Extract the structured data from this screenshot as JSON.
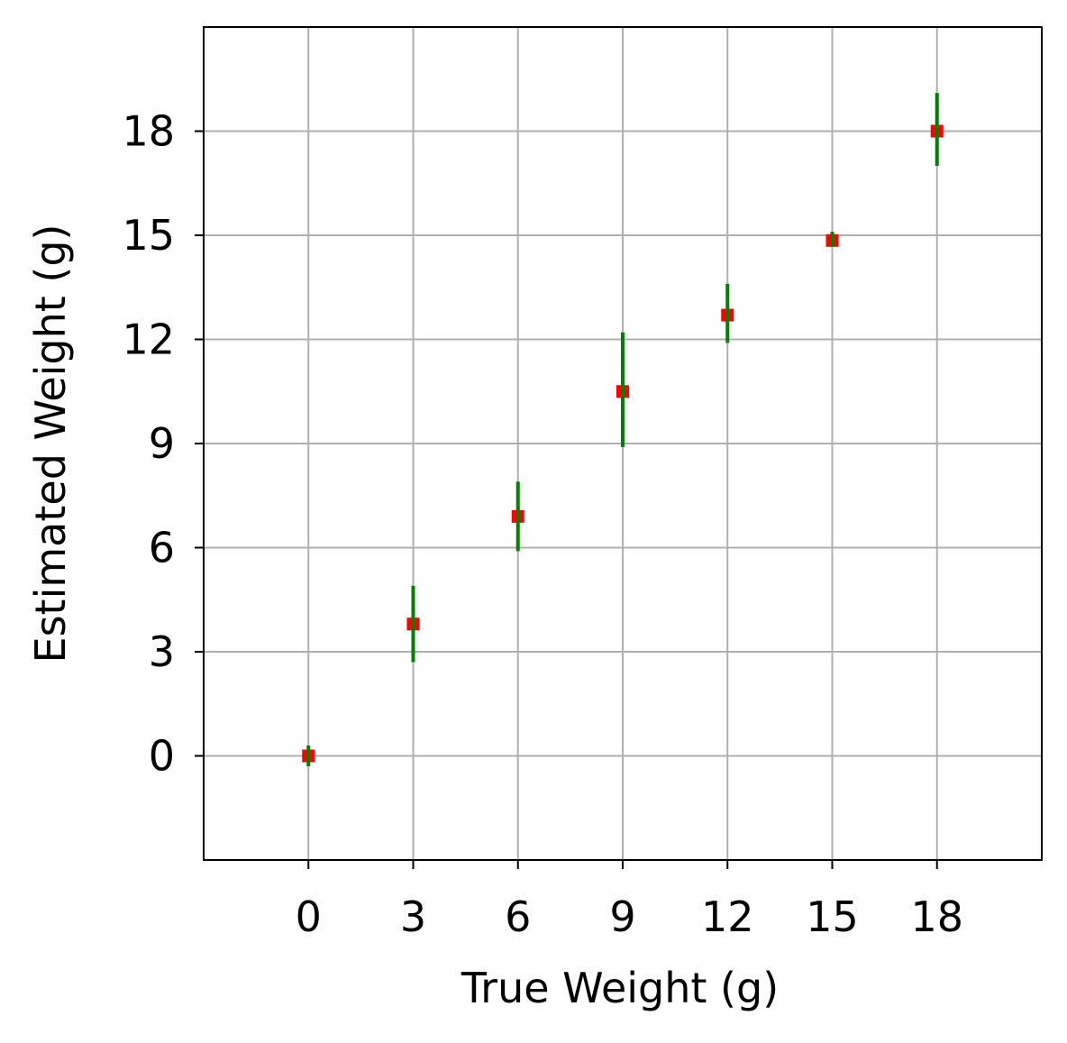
{
  "chart_data": {
    "type": "scatter",
    "xlabel": "True Weight (g)",
    "ylabel": "Estimated Weight (g)",
    "xlim": [
      -3,
      21
    ],
    "ylim": [
      -3,
      21
    ],
    "xticks": [
      0,
      3,
      6,
      9,
      12,
      15,
      18
    ],
    "yticks": [
      0,
      3,
      6,
      9,
      12,
      15,
      18
    ],
    "grid": true,
    "marker_color": "#ff0000",
    "errorbar_color": "#008000",
    "grid_color": "#b0b0b0",
    "points": [
      {
        "x": 0,
        "y": 0.0,
        "yerr_low": -0.3,
        "yerr_high": 0.3
      },
      {
        "x": 3,
        "y": 3.8,
        "yerr_low": 2.7,
        "yerr_high": 4.9
      },
      {
        "x": 6,
        "y": 6.9,
        "yerr_low": 5.9,
        "yerr_high": 7.9
      },
      {
        "x": 9,
        "y": 10.5,
        "yerr_low": 8.9,
        "yerr_high": 12.2
      },
      {
        "x": 12,
        "y": 12.7,
        "yerr_low": 11.9,
        "yerr_high": 13.6
      },
      {
        "x": 15,
        "y": 14.85,
        "yerr_low": 14.7,
        "yerr_high": 15.1
      },
      {
        "x": 18,
        "y": 18.0,
        "yerr_low": 17.0,
        "yerr_high": 19.1
      }
    ]
  }
}
